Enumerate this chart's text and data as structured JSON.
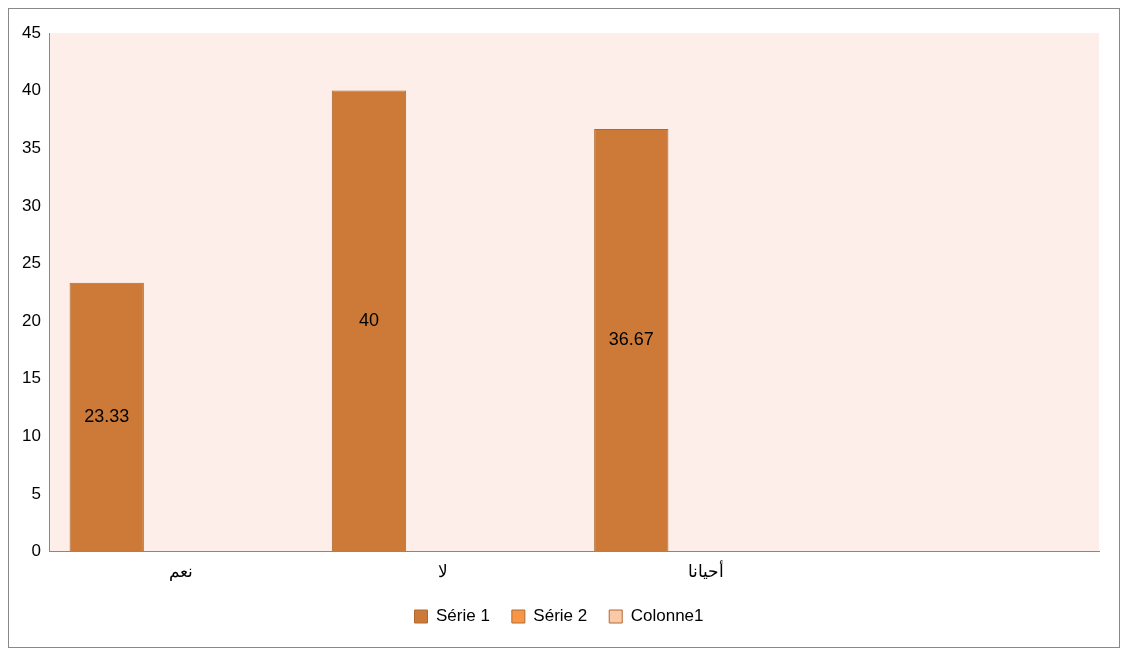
{
  "chart_data": {
    "type": "bar",
    "categories": [
      "نعم",
      "لا",
      "أحيانا",
      null
    ],
    "series": [
      {
        "name": "Série 1",
        "color": "#cd7a38",
        "values": [
          23.33,
          40,
          36.67,
          null
        ]
      },
      {
        "name": "Série 2",
        "color": "#f79646",
        "values": [
          null,
          null,
          null,
          null
        ]
      },
      {
        "name": "Colonne1",
        "color": "#fbc9a8",
        "values": [
          null,
          null,
          null,
          null
        ]
      }
    ],
    "ylim": [
      0,
      45
    ],
    "yticks": [
      0,
      5,
      10,
      15,
      20,
      25,
      30,
      35,
      40,
      45
    ],
    "grid": false,
    "legend": "bottom",
    "data_labels": true
  }
}
